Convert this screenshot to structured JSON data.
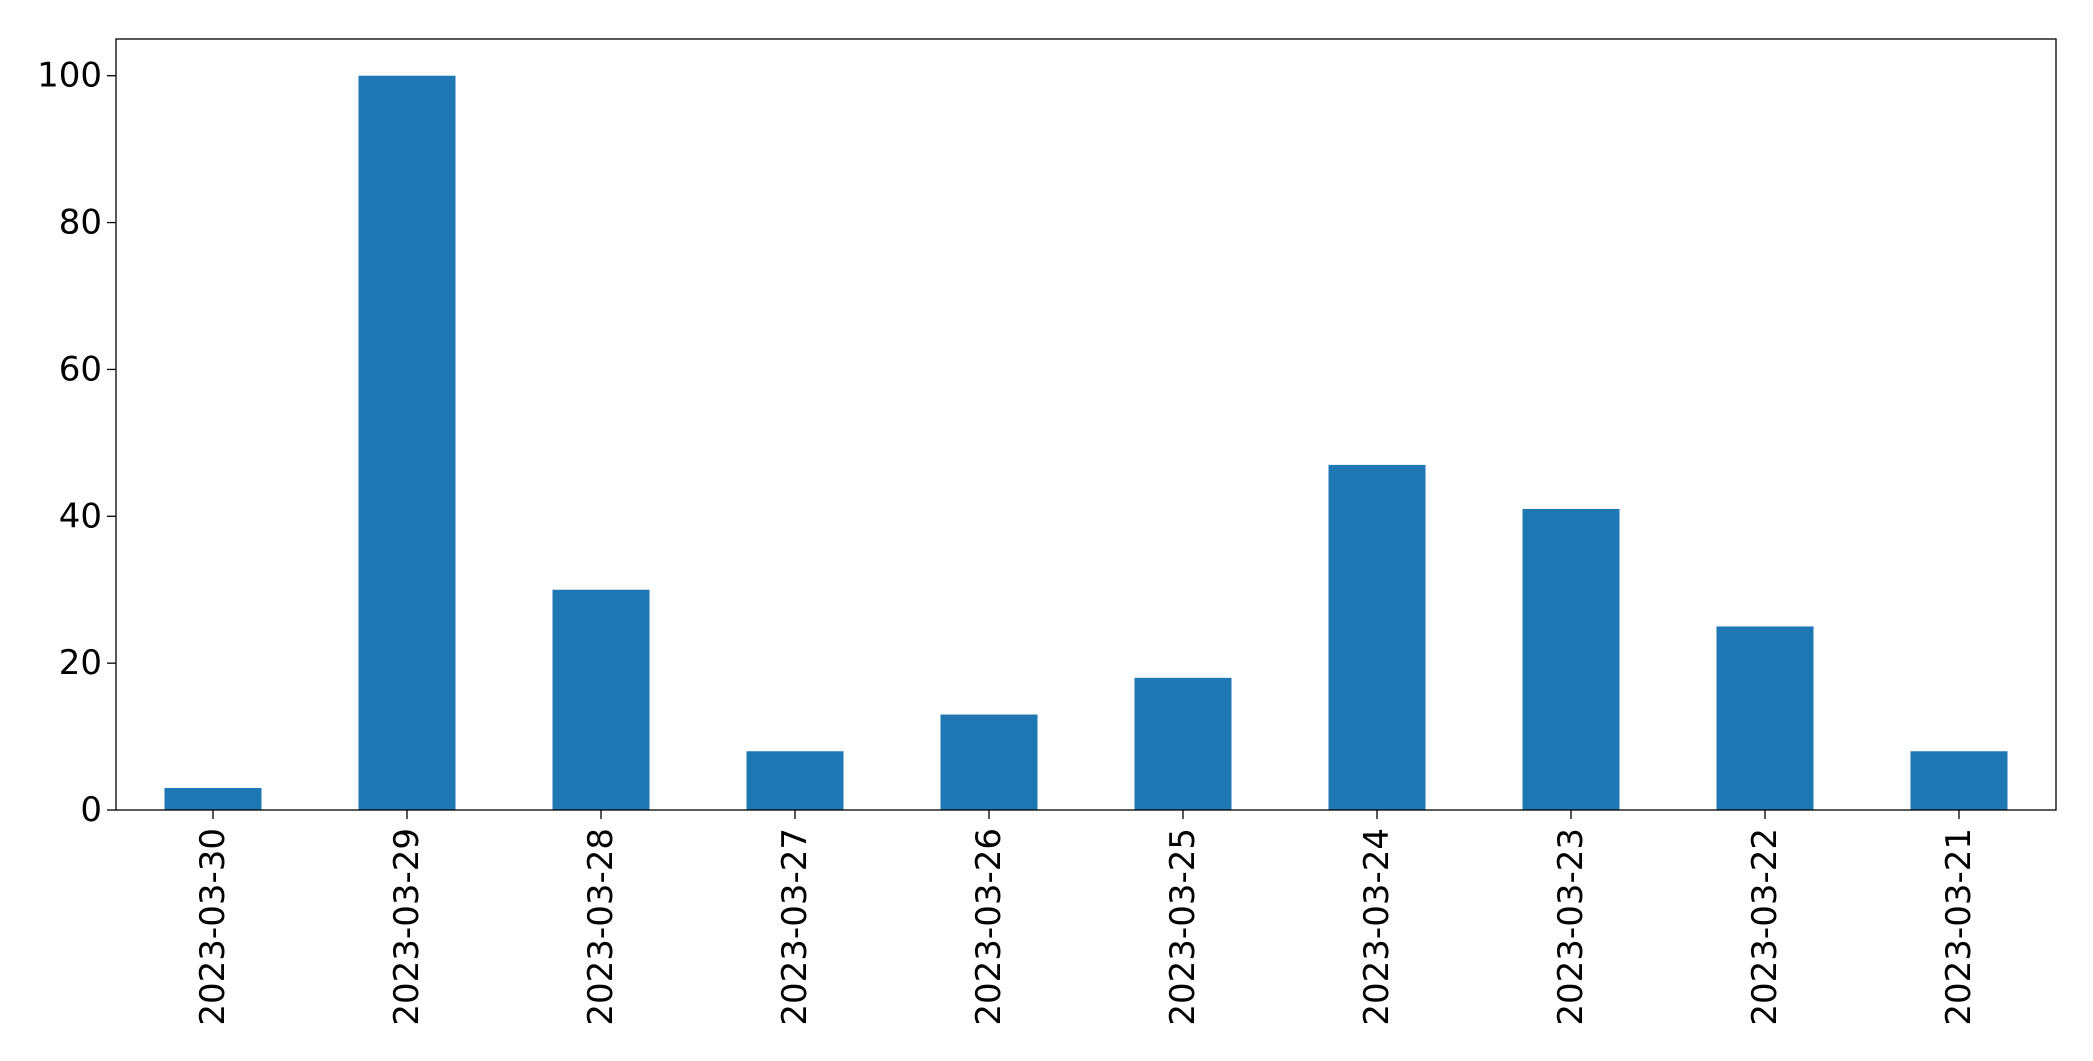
{
  "chart_data": {
    "type": "bar",
    "categories": [
      "2023-03-30",
      "2023-03-29",
      "2023-03-28",
      "2023-03-27",
      "2023-03-26",
      "2023-03-25",
      "2023-03-24",
      "2023-03-23",
      "2023-03-22",
      "2023-03-21"
    ],
    "values": [
      3,
      100,
      30,
      8,
      13,
      18,
      47,
      41,
      25,
      8
    ],
    "title": "",
    "xlabel": "",
    "ylabel": "",
    "ylim": [
      0,
      105
    ],
    "yticks": [
      0,
      20,
      40,
      60,
      80,
      100
    ],
    "bar_color": "#1f77b4",
    "grid": false,
    "legend": "none"
  }
}
